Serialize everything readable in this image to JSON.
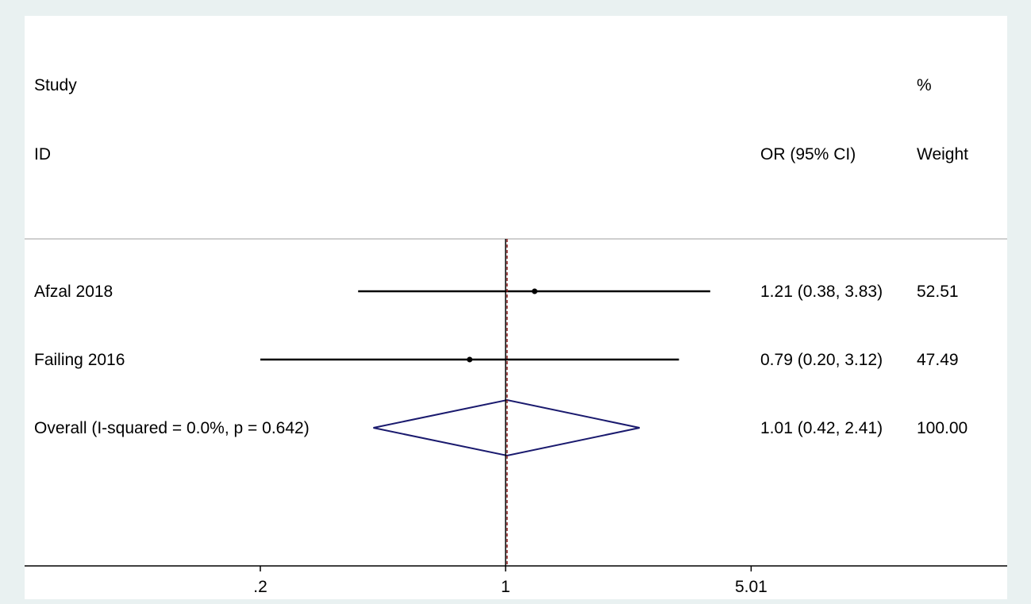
{
  "chart_data": {
    "type": "forest",
    "scale": "log",
    "headers": {
      "study_line1": "Study",
      "study_line2": "ID",
      "estimate": "OR (95% CI)",
      "weight_line1": "%",
      "weight_line2": "Weight"
    },
    "null_value": 1,
    "studies": [
      {
        "label": "Afzal 2018",
        "or": 1.21,
        "lower": 0.38,
        "upper": 3.83,
        "ci_text": "1.21 (0.38, 3.83)",
        "weight": "52.51"
      },
      {
        "label": "Failing 2016",
        "or": 0.79,
        "lower": 0.2,
        "upper": 3.12,
        "ci_text": "0.79 (0.20, 3.12)",
        "weight": "47.49"
      }
    ],
    "overall": {
      "label": "Overall  (I-squared = 0.0%, p = 0.642)",
      "or": 1.01,
      "lower": 0.42,
      "upper": 2.41,
      "ci_text": "1.01 (0.42, 2.41)",
      "weight": "100.00"
    },
    "x_ticks": [
      {
        "value": 0.2,
        "label": ".2"
      },
      {
        "value": 1,
        "label": "1"
      },
      {
        "value": 5.01,
        "label": "5.01"
      }
    ],
    "colors": {
      "background": "#e9f1f1",
      "plot": "#ffffff",
      "ci_line": "#000000",
      "diamond": "#1a1a6e",
      "null_line": "#000000",
      "overall_line": "#8b1a1a"
    }
  }
}
